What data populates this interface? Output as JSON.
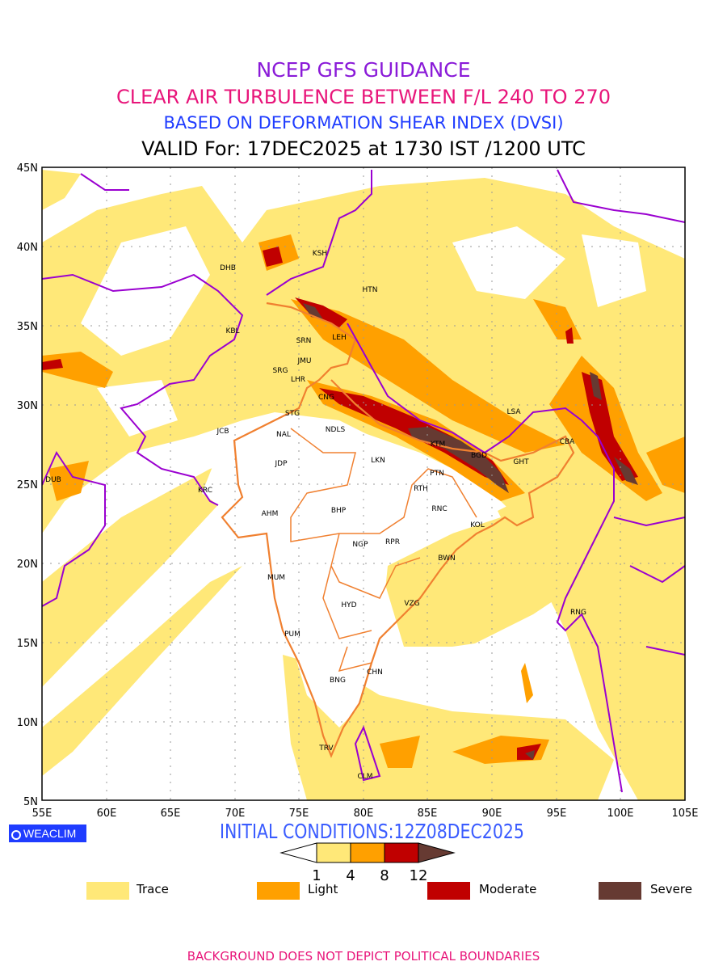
{
  "title": {
    "line1": "NCEP GFS GUIDANCE",
    "line2": "CLEAR AIR TURBULENCE BETWEEN F/L 240 TO 270",
    "line3": "BASED ON DEFORMATION SHEAR INDEX (DVSI)",
    "line4": "VALID For: 17DEC2025 at 1730 IST /1200 UTC"
  },
  "axes": {
    "lat_labels": [
      "45N",
      "40N",
      "35N",
      "30N",
      "25N",
      "20N",
      "15N",
      "10N",
      "5N"
    ],
    "lon_labels": [
      "55E",
      "60E",
      "65E",
      "70E",
      "75E",
      "80E",
      "85E",
      "90E",
      "95E",
      "100E",
      "105E"
    ]
  },
  "cities": [
    "KSH",
    "DHB",
    "HTN",
    "KBL",
    "SRN",
    "LEH",
    "JMU",
    "SRG",
    "LHR",
    "CNG",
    "LSA",
    "STG",
    "JCB",
    "NAL",
    "NDLS",
    "KTM",
    "CBA",
    "BGD",
    "GHT",
    "LKN",
    "JDP",
    "PTN",
    "DUB",
    "RTH",
    "KRC",
    "AHM",
    "RNC",
    "BHP",
    "KOL",
    "NGP",
    "RPR",
    "BWN",
    "MUM",
    "HYD",
    "VZG",
    "RNG",
    "PUM",
    "CHN",
    "BNG",
    "TRV",
    "CLM"
  ],
  "logo": "WEACLIM",
  "initial_conditions": "INITIAL CONDITIONS:12Z08DEC2025",
  "colorbar": {
    "ticks": [
      "1",
      "4",
      "8",
      "12"
    ],
    "colors": [
      "#ffe878",
      "#ffa000",
      "#c00000",
      "#663a32"
    ]
  },
  "legend": [
    {
      "label": "Trace",
      "color": "#ffe878"
    },
    {
      "label": "Light",
      "color": "#ffa000"
    },
    {
      "label": "Moderate",
      "color": "#c00000"
    },
    {
      "label": "Severe",
      "color": "#663a32"
    }
  ],
  "colors": {
    "border": "#9a00d0",
    "india_border": "#f08030",
    "grid": "#999999"
  },
  "footer": "BACKGROUND DOES NOT DEPICT POLITICAL BOUNDARIES"
}
